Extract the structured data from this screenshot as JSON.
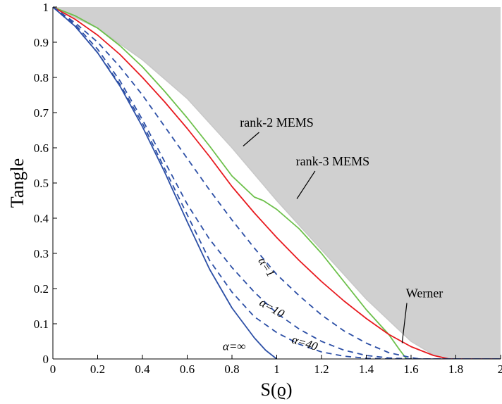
{
  "chart_data": {
    "type": "line",
    "xlabel": "S(ϱ)",
    "ylabel": "Tangle",
    "xlim": [
      0,
      2
    ],
    "ylim": [
      0,
      1
    ],
    "x_ticks": [
      "0",
      "0.2",
      "0.4",
      "0.6",
      "0.8",
      "1",
      "1.2",
      "1.4",
      "1.6",
      "1.8",
      "2"
    ],
    "y_ticks": [
      "0",
      "0.1",
      "0.2",
      "0.3",
      "0.4",
      "0.5",
      "0.6",
      "0.7",
      "0.8",
      "0.9",
      "1"
    ],
    "grid": false,
    "colors": {
      "shaded_region": "#d0d0d0",
      "mems_boundary": "#c8c8c8",
      "werner": "#e8191e",
      "alpha_curves": "#2c4fa6",
      "rank_mems": "#6cc04a",
      "pointer": "#000000"
    },
    "shaded_region": {
      "name": "rank-3 MEMS",
      "x": [
        0,
        0.2,
        0.4,
        0.6,
        0.8,
        1.0,
        1.2,
        1.4,
        1.6,
        1.7,
        1.76
      ],
      "y": [
        1.0,
        0.94,
        0.85,
        0.74,
        0.6,
        0.45,
        0.31,
        0.17,
        0.05,
        0.012,
        0.0
      ]
    },
    "series": [
      {
        "name": "rank-2 MEMS",
        "style": "solid",
        "color": "#6cc04a",
        "x": [
          0,
          0.1,
          0.2,
          0.3,
          0.4,
          0.5,
          0.6,
          0.7,
          0.8,
          0.9,
          0.94,
          1.0,
          1.1,
          1.2,
          1.3,
          1.4,
          1.5,
          1.55,
          1.58
        ],
        "y": [
          1.0,
          0.975,
          0.94,
          0.89,
          0.83,
          0.76,
          0.685,
          0.605,
          0.52,
          0.46,
          0.45,
          0.425,
          0.37,
          0.3,
          0.22,
          0.14,
          0.07,
          0.025,
          0.0
        ]
      },
      {
        "name": "Werner",
        "style": "solid",
        "color": "#e8191e",
        "x": [
          0,
          0.1,
          0.2,
          0.3,
          0.4,
          0.5,
          0.6,
          0.7,
          0.8,
          0.9,
          1.0,
          1.1,
          1.2,
          1.3,
          1.4,
          1.5,
          1.6,
          1.7,
          1.77,
          2.0
        ],
        "y": [
          1.0,
          0.965,
          0.92,
          0.865,
          0.8,
          0.73,
          0.655,
          0.575,
          0.49,
          0.415,
          0.345,
          0.28,
          0.22,
          0.165,
          0.115,
          0.07,
          0.035,
          0.01,
          0.0,
          0.0
        ]
      },
      {
        "name": "α=1",
        "style": "dashed",
        "color": "#2c4fa6",
        "x": [
          0,
          0.1,
          0.2,
          0.3,
          0.4,
          0.5,
          0.6,
          0.7,
          0.8,
          0.9,
          1.0,
          1.1,
          1.2,
          1.3,
          1.4,
          1.5,
          1.6,
          1.64,
          2.0
        ],
        "y": [
          1.0,
          0.955,
          0.9,
          0.83,
          0.75,
          0.66,
          0.57,
          0.48,
          0.395,
          0.315,
          0.24,
          0.18,
          0.125,
          0.08,
          0.045,
          0.018,
          0.004,
          0.0,
          0.0
        ]
      },
      {
        "name": "α=10",
        "style": "dashed",
        "color": "#2c4fa6",
        "x": [
          0,
          0.1,
          0.2,
          0.3,
          0.4,
          0.5,
          0.6,
          0.7,
          0.8,
          0.9,
          1.0,
          1.1,
          1.2,
          1.3,
          1.4,
          1.5,
          1.6,
          2.0
        ],
        "y": [
          1.0,
          0.95,
          0.88,
          0.79,
          0.68,
          0.56,
          0.44,
          0.34,
          0.26,
          0.19,
          0.13,
          0.085,
          0.05,
          0.025,
          0.01,
          0.003,
          0.0,
          0.0
        ]
      },
      {
        "name": "α=40",
        "style": "dashed",
        "color": "#2c4fa6",
        "x": [
          0,
          0.1,
          0.2,
          0.3,
          0.4,
          0.5,
          0.6,
          0.7,
          0.8,
          0.9,
          1.0,
          1.1,
          1.2,
          1.3,
          1.4,
          1.5,
          2.0
        ],
        "y": [
          1.0,
          0.945,
          0.87,
          0.78,
          0.67,
          0.54,
          0.41,
          0.28,
          0.19,
          0.12,
          0.075,
          0.042,
          0.02,
          0.008,
          0.002,
          0.0,
          0.0
        ]
      },
      {
        "name": "α=∞",
        "style": "solid",
        "color": "#2c4fa6",
        "x": [
          0,
          0.1,
          0.2,
          0.3,
          0.4,
          0.5,
          0.6,
          0.7,
          0.8,
          0.9,
          0.95,
          1.0
        ],
        "y": [
          1.0,
          0.945,
          0.87,
          0.775,
          0.66,
          0.53,
          0.39,
          0.255,
          0.145,
          0.06,
          0.025,
          0.0
        ]
      }
    ],
    "annotations": [
      {
        "text": "rank-2 MEMS",
        "x": 1.0,
        "y": 0.66,
        "pointer_to": [
          0.85,
          0.605
        ]
      },
      {
        "text": "rank-3 MEMS",
        "x": 1.25,
        "y": 0.55,
        "pointer_to": [
          1.09,
          0.455
        ]
      },
      {
        "text": "Werner",
        "x": 1.66,
        "y": 0.175,
        "pointer_to": [
          1.56,
          0.045
        ]
      },
      {
        "text": "α=1",
        "x": 0.94,
        "y": 0.255,
        "rotate": 58
      },
      {
        "text": "α=10",
        "x": 0.97,
        "y": 0.135,
        "rotate": 30
      },
      {
        "text": "α=40",
        "x": 1.12,
        "y": 0.035,
        "rotate": 18
      },
      {
        "text": "α=∞",
        "x": 0.81,
        "y": 0.025,
        "rotate": 0
      }
    ]
  }
}
